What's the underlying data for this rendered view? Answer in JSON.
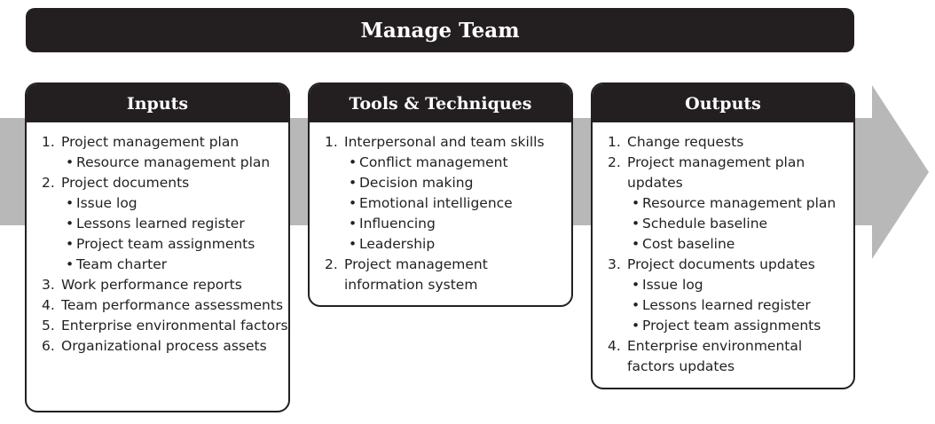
{
  "title": "Manage Team",
  "colors": {
    "dark": "#231f20",
    "arrow": "#b8b8b8"
  },
  "inputs": {
    "header": "Inputs",
    "items": [
      {
        "num": "1.",
        "label": "Project management plan",
        "sub": [
          "Resource management plan"
        ]
      },
      {
        "num": "2.",
        "label": "Project documents",
        "sub": [
          "Issue log",
          "Lessons learned register",
          "Project team assignments",
          "Team charter"
        ]
      },
      {
        "num": "3.",
        "label": "Work performance reports",
        "sub": []
      },
      {
        "num": "4.",
        "label": "Team performance assessments",
        "sub": []
      },
      {
        "num": "5.",
        "label": "Enterprise environmental factors",
        "sub": []
      },
      {
        "num": "6.",
        "label": "Organizational process assets",
        "sub": []
      }
    ]
  },
  "tools": {
    "header": "Tools & Techniques",
    "items": [
      {
        "num": "1.",
        "label": "Interpersonal and team skills",
        "sub": [
          "Conflict management",
          "Decision making",
          "Emotional intelligence",
          "Influencing",
          "Leadership"
        ]
      },
      {
        "num": "2.",
        "label": "Project management information system",
        "sub": []
      }
    ]
  },
  "outputs": {
    "header": "Outputs",
    "items": [
      {
        "num": "1.",
        "label": "Change requests",
        "sub": []
      },
      {
        "num": "2.",
        "label": "Project management plan updates",
        "sub": [
          "Resource management plan",
          "Schedule baseline",
          "Cost baseline"
        ]
      },
      {
        "num": "3.",
        "label": "Project documents updates",
        "sub": [
          "Issue log",
          "Lessons learned register",
          "Project team assignments"
        ]
      },
      {
        "num": "4.",
        "label": "Enterprise environmental factors updates",
        "sub": []
      }
    ]
  }
}
